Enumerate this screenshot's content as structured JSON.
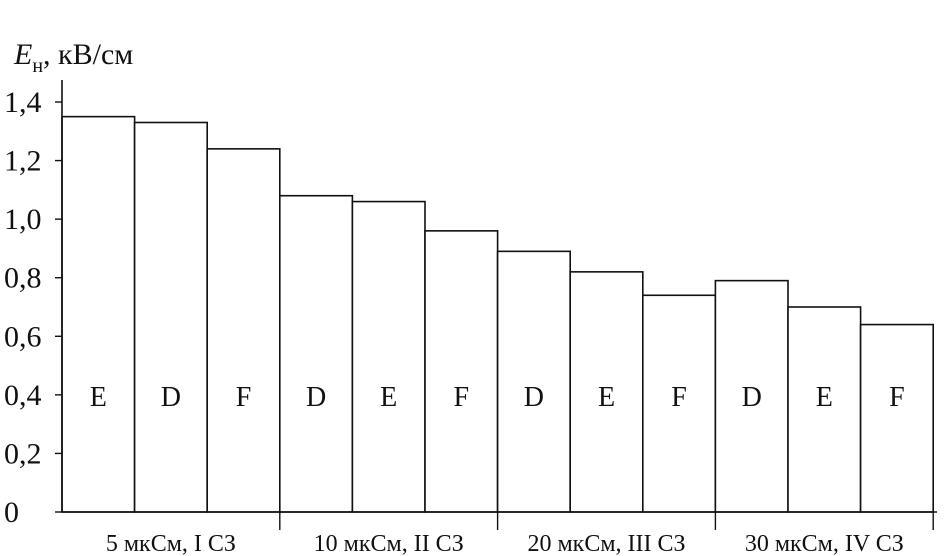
{
  "chart_data": {
    "type": "bar",
    "ylabel_main": "E",
    "ylabel_sub": "н",
    "ylabel_unit": ", кВ/см",
    "ylim": [
      0,
      1.4
    ],
    "yticks": [
      {
        "value": 0,
        "label": "0"
      },
      {
        "value": 0.2,
        "label": "0,2"
      },
      {
        "value": 0.4,
        "label": "0,4"
      },
      {
        "value": 0.6,
        "label": "0,6"
      },
      {
        "value": 0.8,
        "label": "0,8"
      },
      {
        "value": 1.0,
        "label": "1,0"
      },
      {
        "value": 1.2,
        "label": "1,2"
      },
      {
        "value": 1.4,
        "label": "1,4"
      }
    ],
    "groups": [
      {
        "label": "5 мкСм, I СЗ",
        "bars": [
          {
            "label": "E",
            "value": 1.35
          },
          {
            "label": "D",
            "value": 1.33
          },
          {
            "label": "F",
            "value": 1.24
          }
        ]
      },
      {
        "label": "10 мкСм, II СЗ",
        "bars": [
          {
            "label": "D",
            "value": 1.08
          },
          {
            "label": "E",
            "value": 1.06
          },
          {
            "label": "F",
            "value": 0.96
          }
        ]
      },
      {
        "label": "20 мкСм, III СЗ",
        "bars": [
          {
            "label": "D",
            "value": 0.89
          },
          {
            "label": "E",
            "value": 0.82
          },
          {
            "label": "F",
            "value": 0.74
          }
        ]
      },
      {
        "label": "30 мкСм, IV СЗ",
        "bars": [
          {
            "label": "D",
            "value": 0.79
          },
          {
            "label": "E",
            "value": 0.7
          },
          {
            "label": "F",
            "value": 0.64
          }
        ]
      }
    ]
  }
}
